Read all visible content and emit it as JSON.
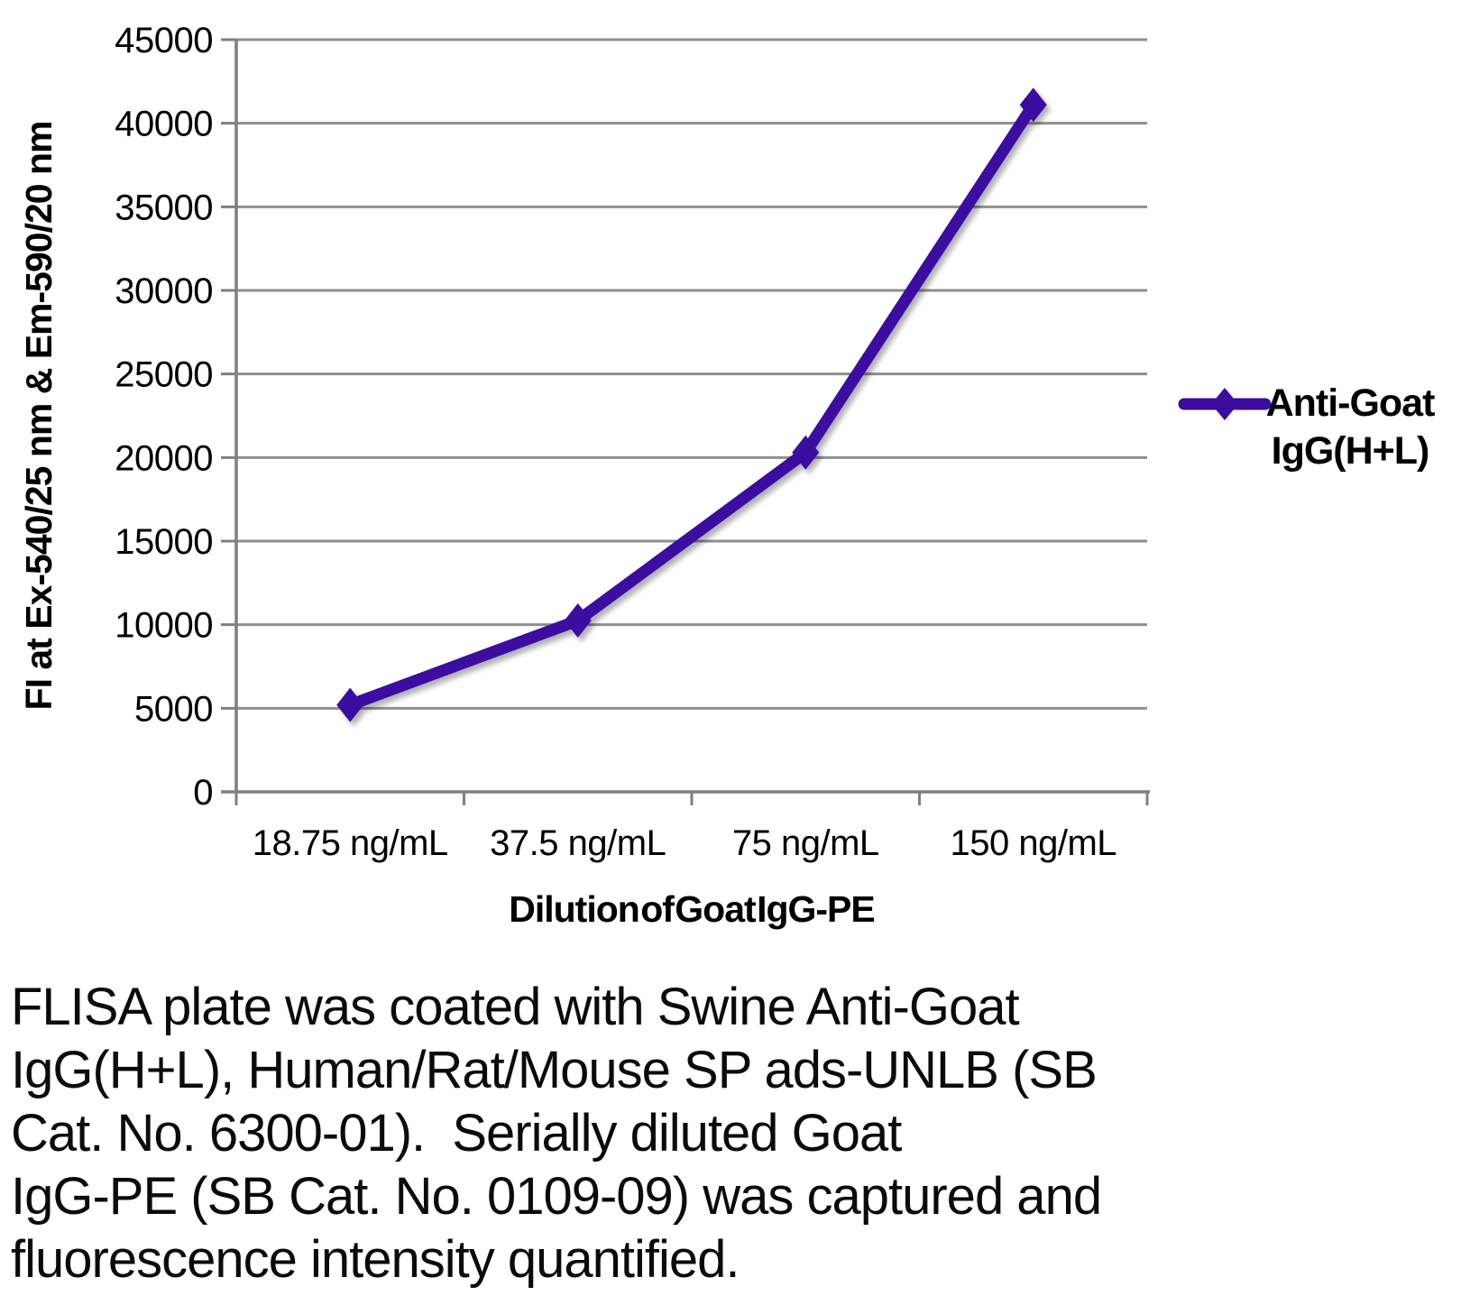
{
  "colors": {
    "series": "#3B0CA0",
    "grid": "#8F8F8F",
    "axis": "#7F7F7F",
    "text": "#000000"
  },
  "chart_data": {
    "type": "line",
    "title": "",
    "categories": [
      "18.75 ng/mL",
      "37.5 ng/mL",
      "75 ng/mL",
      "150 ng/mL"
    ],
    "series": [
      {
        "name": "Anti-Goat IgG(H+L)",
        "color": "#3B0CA0",
        "marker": "diamond",
        "values": [
          5200,
          10250,
          20300,
          41100
        ]
      }
    ],
    "xlabel": "Dilution of Goat IgG-PE",
    "ylabel": "FI at Ex-540/25 nm & Em-590/20 nm",
    "ylim": [
      0,
      45000
    ],
    "ytick_step": 5000,
    "grid": true,
    "legend_position": "right"
  },
  "legend": {
    "lines": [
      "Anti-Goat",
      "IgG(H+L)"
    ]
  },
  "caption": {
    "lines": [
      "FLISA plate was coated with Swine Anti-Goat",
      "IgG(H+L), Human/Rat/Mouse SP ads-UNLB (SB",
      "Cat. No. 6300-01).  Serially diluted Goat",
      "IgG-PE (SB Cat. No. 0109-09) was captured and",
      "fluorescence intensity quantified."
    ]
  }
}
